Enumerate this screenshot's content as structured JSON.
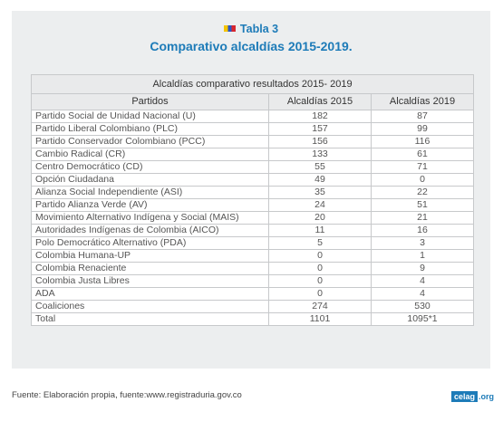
{
  "heading": {
    "label": "Tabla 3",
    "subtitle": "Comparativo alcaldías 2015-2019."
  },
  "table": {
    "caption": "Alcaldías comparativo resultados 2015- 2019",
    "columns": [
      "Partidos",
      "Alcaldías 2015",
      "Alcaldías 2019"
    ],
    "rows": [
      [
        "Partido Social de Unidad Nacional (U)",
        "182",
        "87"
      ],
      [
        "Partido Liberal Colombiano (PLC)",
        "157",
        "99"
      ],
      [
        "Partido Conservador Colombiano (PCC)",
        "156",
        "116"
      ],
      [
        "Cambio Radical (CR)",
        "133",
        "61"
      ],
      [
        "Centro Democrático (CD)",
        "55",
        "71"
      ],
      [
        "Opción Ciudadana",
        "49",
        "0"
      ],
      [
        "Alianza Social Independiente (ASI)",
        "35",
        "22"
      ],
      [
        "Partido Alianza Verde (AV)",
        "24",
        "51"
      ],
      [
        "Movimiento Alternativo Indígena y Social (MAIS)",
        "20",
        "21"
      ],
      [
        "Autoridades Indígenas de Colombia (AICO)",
        "11",
        "16"
      ],
      [
        "Polo Democrático Alternativo (PDA)",
        "5",
        "3"
      ],
      [
        "Colombia Humana-UP",
        "0",
        "1"
      ],
      [
        "Colombia Renaciente",
        "0",
        "9"
      ],
      [
        "Colombia Justa Libres",
        "0",
        "4"
      ],
      [
        "ADA",
        "0",
        "4"
      ],
      [
        "Coaliciones",
        "274",
        "530"
      ],
      [
        "Total",
        "1101",
        "1095*1"
      ]
    ]
  },
  "footer": {
    "source": "Fuente:  Elaboración propia, fuente:www.registraduria.gov.co"
  },
  "logo": {
    "brand": "celag",
    "tld": ".org"
  }
}
